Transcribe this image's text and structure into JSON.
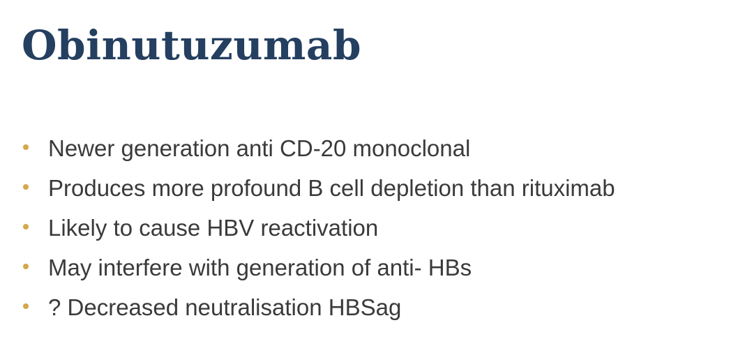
{
  "slide": {
    "title": "Obinutuzumab",
    "bullet_color": "#d4a84a",
    "title_color": "#243f60",
    "bullets": [
      "Newer generation anti CD-20 monoclonal",
      "Produces more profound B cell depletion than rituximab",
      "Likely to cause HBV reactivation",
      "May interfere with generation of anti- HBs",
      "? Decreased neutralisation HBSag"
    ]
  }
}
